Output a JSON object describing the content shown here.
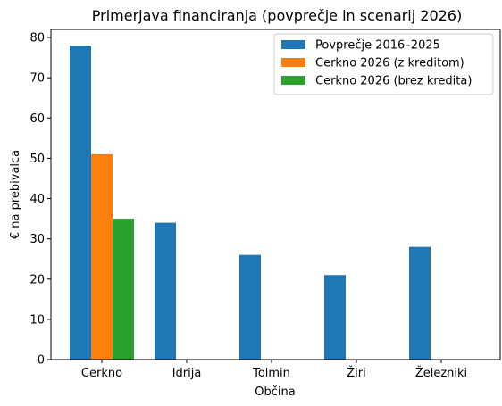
{
  "chart_data": {
    "type": "bar",
    "title": "Primerjava financiranja (povprečje in scenarij 2026)",
    "xlabel": "Občina",
    "ylabel": "€ na prebivalca",
    "categories": [
      "Cerkno",
      "Idrija",
      "Tolmin",
      "Žiri",
      "Železniki"
    ],
    "series": [
      {
        "name": "Povprečje 2016–2025",
        "color": "#1f77b4",
        "values": [
          78,
          34,
          26,
          21,
          28
        ]
      },
      {
        "name": "Cerkno 2026 (z kreditom)",
        "color": "#ff7f0e",
        "values": [
          51,
          null,
          null,
          null,
          null
        ]
      },
      {
        "name": "Cerkno 2026 (brez kredita)",
        "color": "#2ca02c",
        "values": [
          35,
          null,
          null,
          null,
          null
        ]
      }
    ],
    "ylim": [
      0,
      82
    ],
    "yticks": [
      0,
      10,
      20,
      30,
      40,
      50,
      60,
      70,
      80
    ],
    "grid": false,
    "legend_position": "top-right"
  }
}
